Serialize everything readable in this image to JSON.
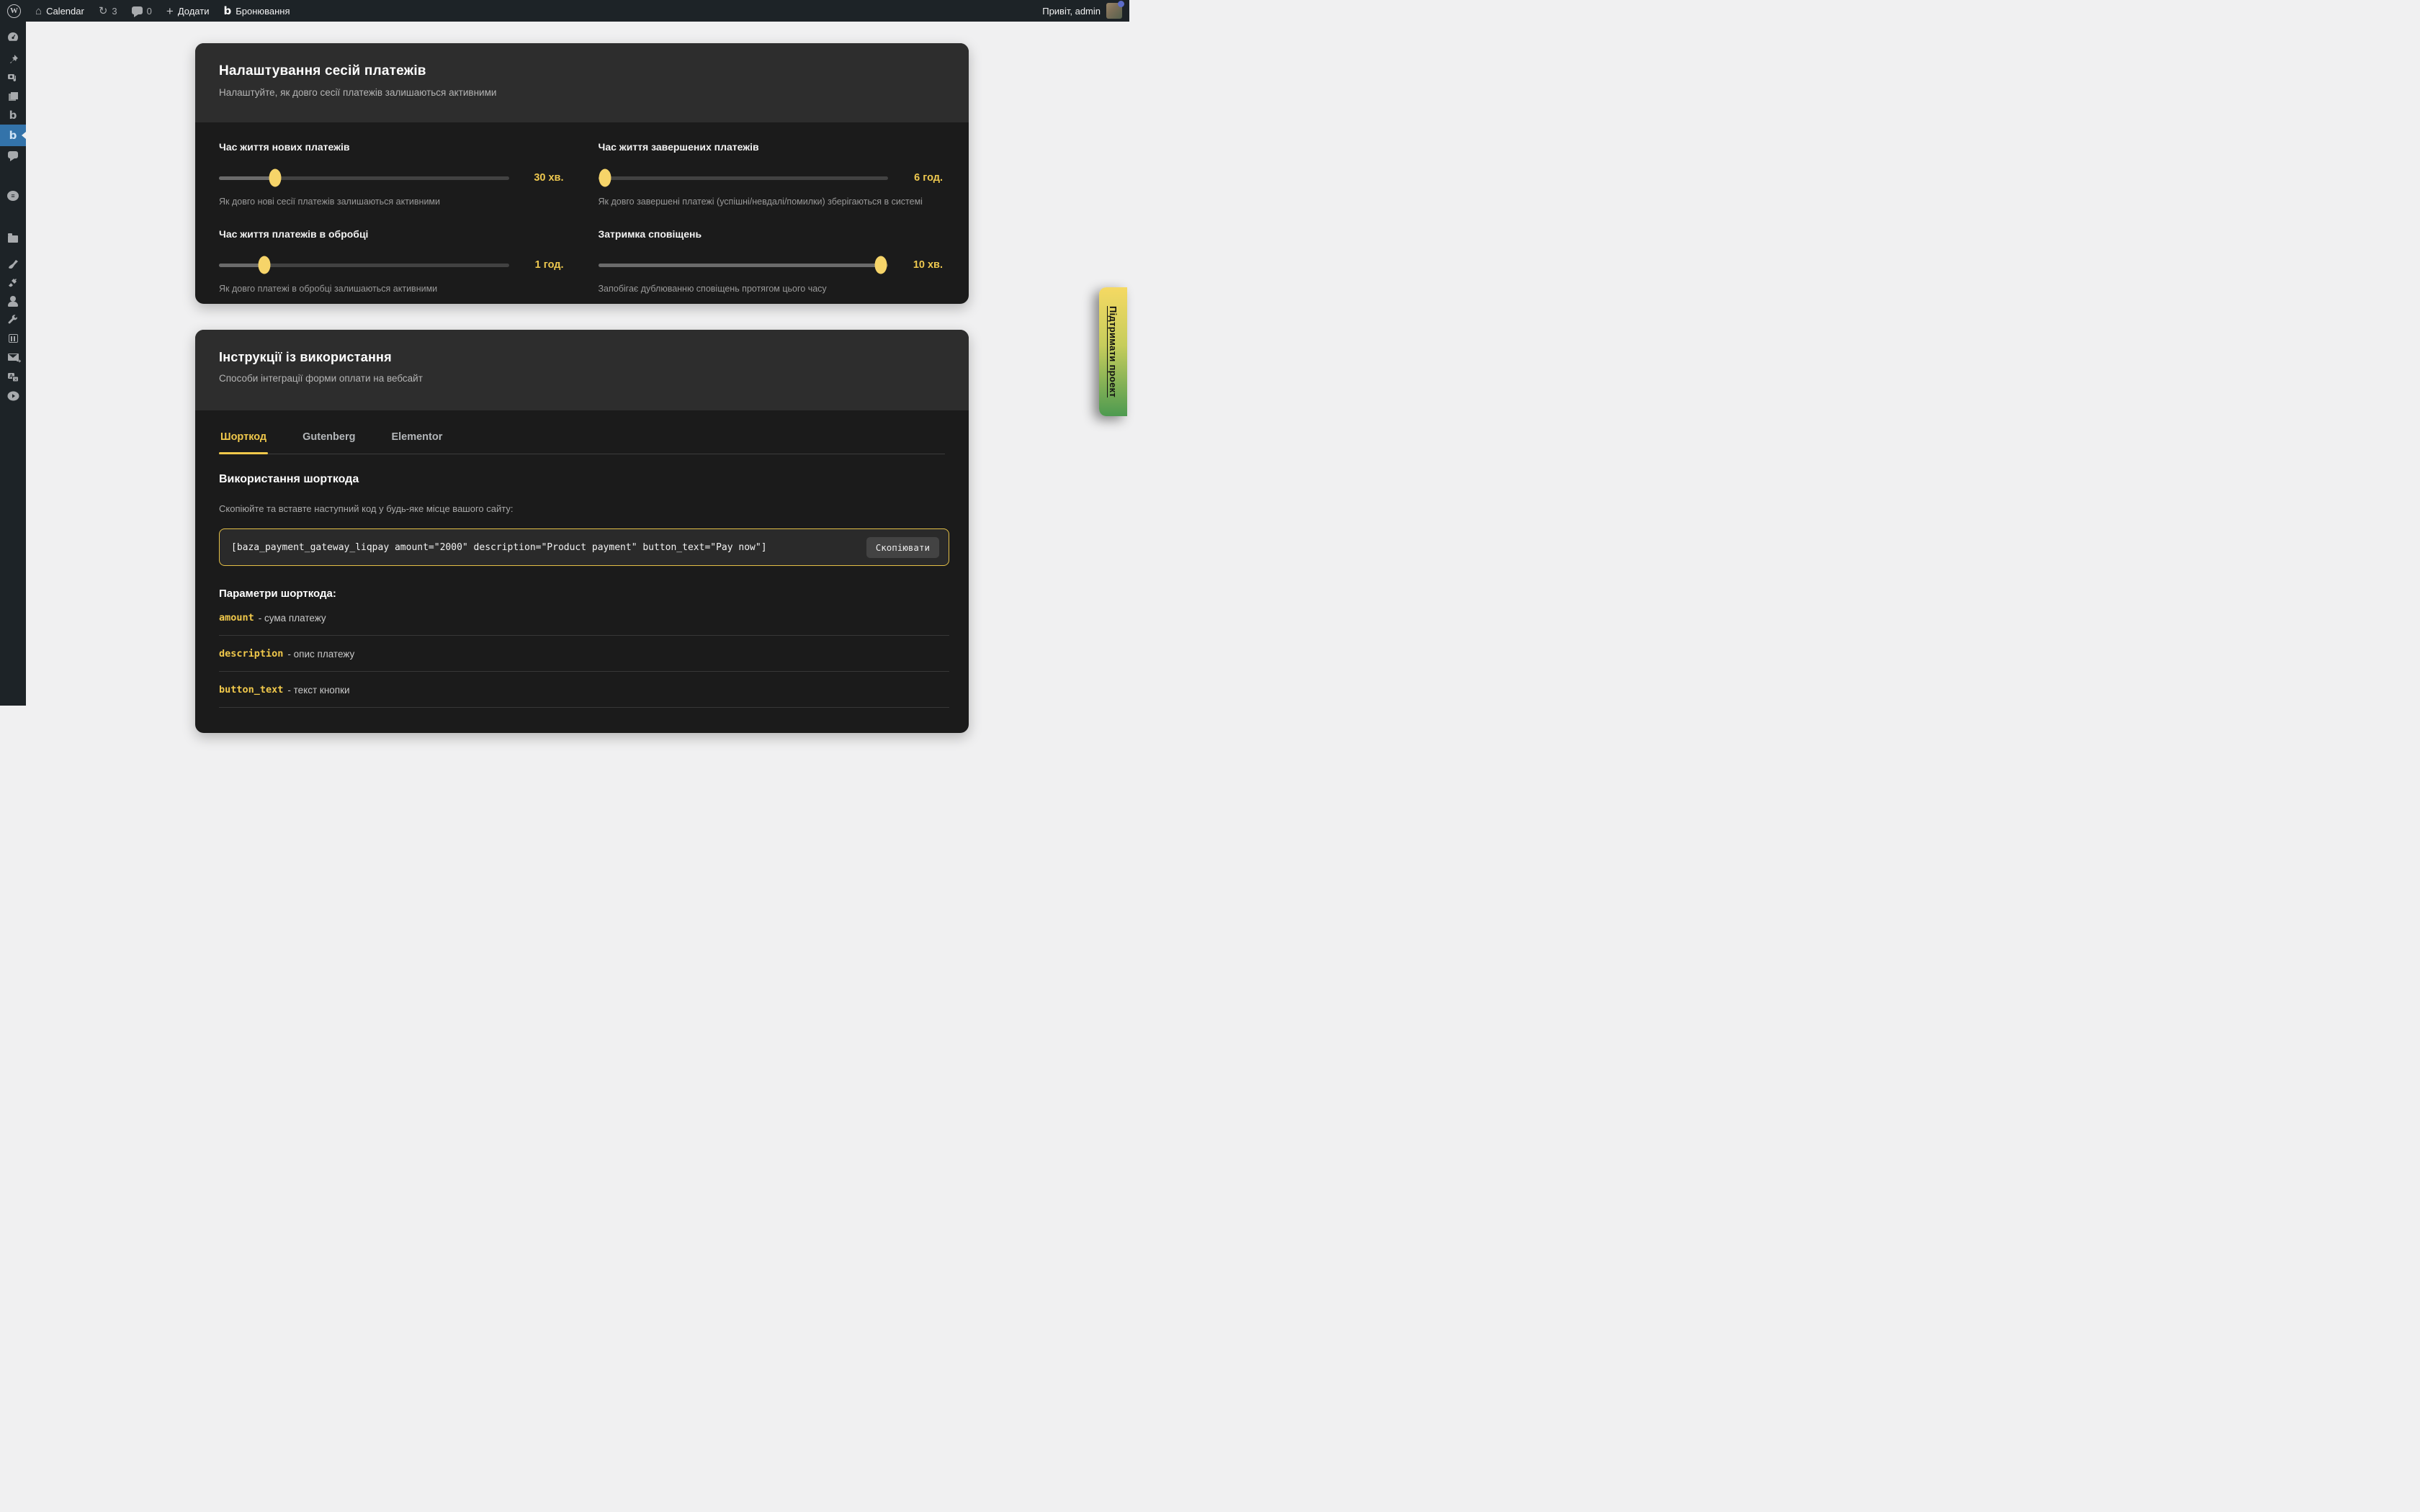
{
  "admin_bar": {
    "site_name": "Calendar",
    "update_count": "3",
    "comment_count": "0",
    "add_label": "Додати",
    "booking_label": "Бронювання",
    "greeting": "Привіт, admin"
  },
  "sidebar": {
    "icons": [
      "dashboard",
      "pin-posts",
      "media",
      "pages",
      "booking-b",
      "payments-b-active",
      "comments",
      "elementor",
      "folder",
      "appearance-brush",
      "plugins-plug",
      "users-person",
      "tools-wrench",
      "settings-sliders",
      "mail-forward",
      "translate",
      "play-video"
    ]
  },
  "session_card": {
    "title": "Налаштування сесій платежів",
    "subtitle": "Налаштуйте, як довго сесії платежів залишаються активними",
    "sliders": [
      {
        "label": "Час життя нових платежів",
        "value": "30 хв.",
        "description": "Як довго нові сесії платежів залишаються активними",
        "percent": 19.5
      },
      {
        "label": "Час життя завершених платежів",
        "value": "6 год.",
        "description": "Як довго завершені платежі (успішні/невдалі/помилки) зберігаються в системі",
        "percent": 2.3
      },
      {
        "label": "Час життя платежів в обробці",
        "value": "1 год.",
        "description": "Як довго платежі в обробці залишаються активними",
        "percent": 15.7
      },
      {
        "label": "Затримка сповіщень",
        "value": "10 хв.",
        "description": "Запобігає дублюванню сповіщень протягом цього часу",
        "percent": 97.5
      }
    ]
  },
  "instructions_card": {
    "title": "Інструкції із використання",
    "subtitle": "Способи інтеграції форми оплати на вебсайт",
    "tabs": [
      {
        "label": "Шорткод",
        "active": true
      },
      {
        "label": "Gutenberg",
        "active": false
      },
      {
        "label": "Elementor",
        "active": false
      }
    ],
    "usage_title": "Використання шорткода",
    "usage_hint": "Скопіюйте та вставте наступний код у будь-яке місце вашого сайту:",
    "shortcode": "[baza_payment_gateway_liqpay amount=\"2000\" description=\"Product payment\" button_text=\"Pay now\"]",
    "copy_label": "Скопіювати",
    "params_title": "Параметри шорткода:",
    "params": [
      {
        "name": "amount",
        "description": "- сума платежу"
      },
      {
        "name": "description",
        "description": "- опис платежу"
      },
      {
        "name": "button_text",
        "description": "- текст кнопки"
      }
    ]
  },
  "ribbon": {
    "label": "Підтримати проект"
  },
  "colors": {
    "accent_yellow": "#f0c84b",
    "active_blue": "#3373aa",
    "admin_dark": "#1d2327",
    "card_body": "#1b1b1b",
    "card_head": "#2d2d2d",
    "content_bg": "#f0f0f1",
    "ribbon_top": "#f5d963",
    "ribbon_bottom": "#4d9a50"
  }
}
